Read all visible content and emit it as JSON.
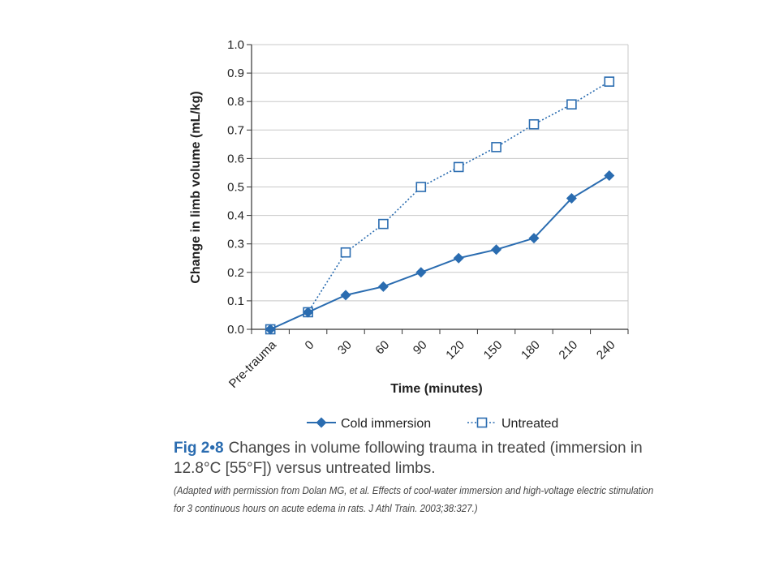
{
  "chart_data": {
    "type": "line",
    "xlabel": "Time (minutes)",
    "ylabel": "Change in limb volume (mL/kg)",
    "categories": [
      "Pre-trauma",
      "0",
      "30",
      "60",
      "90",
      "120",
      "150",
      "180",
      "210",
      "240"
    ],
    "ylim": [
      0,
      1.0
    ],
    "yticks": [
      "0.0",
      "0.1",
      "0.2",
      "0.3",
      "0.4",
      "0.5",
      "0.6",
      "0.7",
      "0.8",
      "0.9",
      "1.0"
    ],
    "grid": true,
    "legend_position": "bottom-center",
    "series": [
      {
        "name": "Cold immersion",
        "values": [
          0.0,
          0.06,
          0.12,
          0.15,
          0.2,
          0.25,
          0.28,
          0.32,
          0.46,
          0.54
        ],
        "color": "#2a6cb0",
        "line_style": "solid",
        "marker": "filled-diamond"
      },
      {
        "name": "Untreated",
        "values": [
          0.0,
          0.06,
          0.27,
          0.37,
          0.5,
          0.57,
          0.64,
          0.72,
          0.79,
          0.87
        ],
        "color": "#2a6cb0",
        "line_style": "dotted",
        "marker": "open-square"
      }
    ]
  },
  "caption": {
    "figure_label": "Fig 2•8",
    "text": "Changes in volume following trauma in treated (immersion in 12.8°C [55°F]) versus untreated limbs.",
    "credit": "(Adapted with permission from Dolan MG, et al. Effects of cool-water immersion and high-voltage electric stimulation for 3 continuous hours on acute edema in rats. J Athl Train. 2003;38:327.)"
  }
}
